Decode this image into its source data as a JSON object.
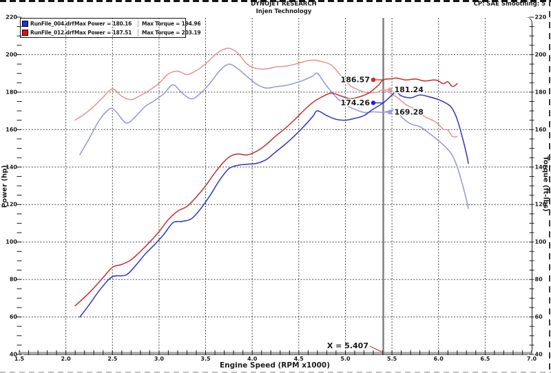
{
  "header": {
    "title": "DYNOJET RESEARCH",
    "subtitle": "Injen Technology",
    "info_right": "CP: SAE  Smoothing: 5"
  },
  "legend": {
    "runs": [
      {
        "file": "RunFile_004.drf",
        "max_power": "Max Power = 180.16",
        "max_torque": "Max Torque = 194.96",
        "swatch_color": "#2431d6"
      },
      {
        "file": "RunFile_012.drf",
        "max_power": "Max Power = 187.51",
        "max_torque": "Max Torque = 203.19",
        "swatch_color": "#e01313"
      }
    ]
  },
  "chart_data": {
    "type": "line",
    "xlabel": "Engine Speed (RPM x1000)",
    "ylabel_left": "Power (hp)",
    "ylabel_right": "Torque (ft-lbs)",
    "xlim": [
      1.5,
      7.0
    ],
    "ylim": [
      40,
      220
    ],
    "x_tick_labels": [
      "1.5",
      "2.0",
      "2.5",
      "3.0",
      "3.5",
      "4.0",
      "4.5",
      "5.0",
      "5.5",
      "6.0",
      "6.5",
      "7.0"
    ],
    "y_tick_labels": [
      "40",
      "60",
      "80",
      "100",
      "120",
      "140",
      "160",
      "180",
      "200",
      "220"
    ],
    "x_minor_step": 0.1,
    "y_minor_step": 5,
    "grid": true,
    "grid_color": "#474747",
    "cursor": {
      "x": 5.407,
      "label": "X = 5.407"
    },
    "cursor_markers": [
      {
        "label": "186.57",
        "rpm": 5.407,
        "value": 186.57,
        "color": "#e81c1c",
        "side": "left"
      },
      {
        "label": "181.24",
        "rpm": 5.407,
        "value": 181.24,
        "color": "#f09a9a",
        "side": "right"
      },
      {
        "label": "174.26",
        "rpm": 5.407,
        "value": 174.26,
        "color": "#1c1ce8",
        "side": "left"
      },
      {
        "label": "169.28",
        "rpm": 5.407,
        "value": 169.28,
        "color": "#9a9af0",
        "side": "right"
      }
    ],
    "series": [
      {
        "name": "RunFile_004-torque",
        "unit": "ft-lbs",
        "color": "#9a9ade",
        "points": [
          [
            2.15,
            146.6
          ],
          [
            2.25,
            155.2
          ],
          [
            2.35,
            164.3
          ],
          [
            2.45,
            170.4
          ],
          [
            2.5,
            171.2
          ],
          [
            2.55,
            168.9
          ],
          [
            2.65,
            163.5
          ],
          [
            2.75,
            167.1
          ],
          [
            2.85,
            172.3
          ],
          [
            2.95,
            175.4
          ],
          [
            3.05,
            179.1
          ],
          [
            3.15,
            183.9
          ],
          [
            3.25,
            179.4
          ],
          [
            3.35,
            176.4
          ],
          [
            3.45,
            179.6
          ],
          [
            3.55,
            184.9
          ],
          [
            3.65,
            191.4
          ],
          [
            3.75,
            194.96
          ],
          [
            3.85,
            192.3
          ],
          [
            3.95,
            188.1
          ],
          [
            4.05,
            184.2
          ],
          [
            4.15,
            182.2
          ],
          [
            4.25,
            182.9
          ],
          [
            4.35,
            183.5
          ],
          [
            4.45,
            184.7
          ],
          [
            4.55,
            186.4
          ],
          [
            4.65,
            188.6
          ],
          [
            4.7,
            190.0
          ],
          [
            4.8,
            183.3
          ],
          [
            4.9,
            177.4
          ],
          [
            5.0,
            173.3
          ],
          [
            5.1,
            170.9
          ],
          [
            5.2,
            169.2
          ],
          [
            5.3,
            169.5
          ],
          [
            5.407,
            169.28
          ],
          [
            5.5,
            170.4
          ],
          [
            5.55,
            170.5
          ],
          [
            5.6,
            166.9
          ],
          [
            5.7,
            163.1
          ],
          [
            5.8,
            161.6
          ],
          [
            5.9,
            158.0
          ],
          [
            6.0,
            154.1
          ],
          [
            6.1,
            149.4
          ],
          [
            6.15,
            146.0
          ],
          [
            6.2,
            140.2
          ],
          [
            6.25,
            131.9
          ],
          [
            6.3,
            122.5
          ],
          [
            6.32,
            118.0
          ]
        ]
      },
      {
        "name": "RunFile_012-torque",
        "unit": "ft-lbs",
        "color": "#e49898",
        "points": [
          [
            2.1,
            165.1
          ],
          [
            2.2,
            168.3
          ],
          [
            2.3,
            172.4
          ],
          [
            2.4,
            177.3
          ],
          [
            2.5,
            181.7
          ],
          [
            2.6,
            177.8
          ],
          [
            2.7,
            176.0
          ],
          [
            2.8,
            178.2
          ],
          [
            2.9,
            181.1
          ],
          [
            3.0,
            184.7
          ],
          [
            3.1,
            189.7
          ],
          [
            3.2,
            191.2
          ],
          [
            3.3,
            189.4
          ],
          [
            3.4,
            191.5
          ],
          [
            3.5,
            195.1
          ],
          [
            3.6,
            199.9
          ],
          [
            3.7,
            203.0
          ],
          [
            3.77,
            203.19
          ],
          [
            3.85,
            200.5
          ],
          [
            3.95,
            194.8
          ],
          [
            4.05,
            192.6
          ],
          [
            4.15,
            192.4
          ],
          [
            4.25,
            193.4
          ],
          [
            4.35,
            193.8
          ],
          [
            4.45,
            194.8
          ],
          [
            4.55,
            196.2
          ],
          [
            4.65,
            197.1
          ],
          [
            4.75,
            196.3
          ],
          [
            4.85,
            194.4
          ],
          [
            4.95,
            188.9
          ],
          [
            5.05,
            183.6
          ],
          [
            5.15,
            181.0
          ],
          [
            5.25,
            179.6
          ],
          [
            5.35,
            180.1
          ],
          [
            5.407,
            181.24
          ],
          [
            5.5,
            178.8
          ],
          [
            5.55,
            177.4
          ],
          [
            5.65,
            173.4
          ],
          [
            5.75,
            170.8
          ],
          [
            5.85,
            167.0
          ],
          [
            5.95,
            164.6
          ],
          [
            6.0,
            162.8
          ],
          [
            6.05,
            160.2
          ],
          [
            6.1,
            159.7
          ],
          [
            6.15,
            156.3
          ],
          [
            6.2,
            156.3
          ]
        ]
      },
      {
        "name": "RunFile_004-power",
        "unit": "hp",
        "color": "#3a3ec1",
        "points": [
          [
            2.15,
            60
          ],
          [
            2.25,
            66.5
          ],
          [
            2.35,
            73.5
          ],
          [
            2.45,
            79.5
          ],
          [
            2.5,
            81.5
          ],
          [
            2.55,
            82
          ],
          [
            2.65,
            82.5
          ],
          [
            2.75,
            87.5
          ],
          [
            2.85,
            93.5
          ],
          [
            2.95,
            98.5
          ],
          [
            3.05,
            104
          ],
          [
            3.15,
            110.3
          ],
          [
            3.25,
            111
          ],
          [
            3.35,
            112.5
          ],
          [
            3.45,
            118
          ],
          [
            3.55,
            125
          ],
          [
            3.65,
            133
          ],
          [
            3.75,
            139.2
          ],
          [
            3.85,
            141
          ],
          [
            3.95,
            141.5
          ],
          [
            4.05,
            142
          ],
          [
            4.15,
            144
          ],
          [
            4.25,
            148
          ],
          [
            4.35,
            152
          ],
          [
            4.45,
            156.5
          ],
          [
            4.55,
            161.5
          ],
          [
            4.65,
            167
          ],
          [
            4.7,
            170
          ],
          [
            4.8,
            167.5
          ],
          [
            4.9,
            165.5
          ],
          [
            5.0,
            165
          ],
          [
            5.1,
            166
          ],
          [
            5.2,
            167.5
          ],
          [
            5.3,
            171
          ],
          [
            5.407,
            174.26
          ],
          [
            5.5,
            178.5
          ],
          [
            5.55,
            180.16
          ],
          [
            5.6,
            178
          ],
          [
            5.7,
            177
          ],
          [
            5.8,
            178.5
          ],
          [
            5.9,
            177.5
          ],
          [
            6.0,
            176
          ],
          [
            6.1,
            173.5
          ],
          [
            6.15,
            171
          ],
          [
            6.2,
            165.5
          ],
          [
            6.25,
            157
          ],
          [
            6.3,
            147
          ],
          [
            6.32,
            142
          ]
        ]
      },
      {
        "name": "RunFile_012-power",
        "unit": "hp",
        "color": "#c13a3a",
        "points": [
          [
            2.1,
            66
          ],
          [
            2.2,
            70.5
          ],
          [
            2.3,
            75.5
          ],
          [
            2.4,
            81
          ],
          [
            2.5,
            86.5
          ],
          [
            2.6,
            88
          ],
          [
            2.7,
            90.5
          ],
          [
            2.8,
            95
          ],
          [
            2.9,
            100
          ],
          [
            3.0,
            105.5
          ],
          [
            3.1,
            112
          ],
          [
            3.2,
            116.5
          ],
          [
            3.3,
            119
          ],
          [
            3.4,
            124
          ],
          [
            3.5,
            130
          ],
          [
            3.6,
            137
          ],
          [
            3.7,
            143
          ],
          [
            3.77,
            145.9
          ],
          [
            3.85,
            147
          ],
          [
            3.95,
            146.5
          ],
          [
            4.05,
            148.5
          ],
          [
            4.15,
            152
          ],
          [
            4.25,
            156.5
          ],
          [
            4.35,
            160.5
          ],
          [
            4.45,
            165
          ],
          [
            4.55,
            170
          ],
          [
            4.65,
            174.5
          ],
          [
            4.75,
            177.5
          ],
          [
            4.85,
            179.5
          ],
          [
            4.95,
            178
          ],
          [
            5.05,
            176.5
          ],
          [
            5.15,
            177.5
          ],
          [
            5.25,
            179.5
          ],
          [
            5.35,
            183.5
          ],
          [
            5.407,
            186.57
          ],
          [
            5.5,
            187.2
          ],
          [
            5.55,
            187.51
          ],
          [
            5.65,
            186.5
          ],
          [
            5.75,
            187
          ],
          [
            5.85,
            186
          ],
          [
            5.95,
            186.5
          ],
          [
            6.0,
            186
          ],
          [
            6.05,
            184.5
          ],
          [
            6.1,
            185.5
          ],
          [
            6.15,
            183
          ],
          [
            6.2,
            184.5
          ]
        ]
      }
    ]
  }
}
